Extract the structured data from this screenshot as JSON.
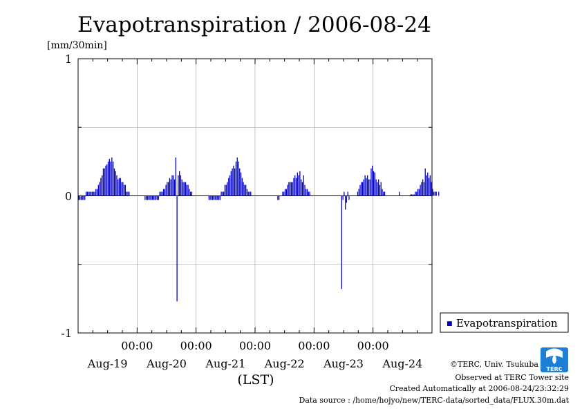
{
  "chart_data": {
    "type": "bar",
    "title": "Evapotranspiration / 2006-08-24",
    "ylabel": "[mm/30min]",
    "xlabel": "(LST)",
    "ylim": [
      -1,
      1
    ],
    "yticks": [
      {
        "value": 1,
        "label": "1"
      },
      {
        "value": 0,
        "label": "0"
      },
      {
        "value": -1,
        "label": "-1"
      }
    ],
    "yminor": [
      0.5,
      -0.5
    ],
    "xlim_days": [
      0,
      6
    ],
    "xticks": [
      {
        "day": 1,
        "label": "00:00"
      },
      {
        "day": 2,
        "label": "00:00"
      },
      {
        "day": 3,
        "label": "00:00"
      },
      {
        "day": 4,
        "label": "00:00"
      },
      {
        "day": 5,
        "label": "00:00"
      }
    ],
    "day_labels": [
      {
        "day": 0.5,
        "label": "Aug-19"
      },
      {
        "day": 1.5,
        "label": "Aug-20"
      },
      {
        "day": 2.5,
        "label": "Aug-21"
      },
      {
        "day": 3.5,
        "label": "Aug-22"
      },
      {
        "day": 4.5,
        "label": "Aug-23"
      },
      {
        "day": 5.5,
        "label": "Aug-24"
      }
    ],
    "grid": true,
    "legend_position": "right",
    "series": [
      {
        "name": "Evapotranspiration",
        "color": "#0000cc",
        "interval_hours": 0.5,
        "start": "Aug-19 00:00",
        "values": [
          -0.03,
          -0.03,
          -0.03,
          -0.03,
          -0.03,
          -0.03,
          0.03,
          0.03,
          0.03,
          0.03,
          0.03,
          0.03,
          0.03,
          0.03,
          0.05,
          0.05,
          0.08,
          0.1,
          0.13,
          0.15,
          0.2,
          0.2,
          0.22,
          0.23,
          0.25,
          0.27,
          0.25,
          0.28,
          0.25,
          0.2,
          0.18,
          0.15,
          0.12,
          0.13,
          0.13,
          0.1,
          0.1,
          0.08,
          0.08,
          0.03,
          0.03,
          0.03,
          0,
          0,
          0,
          0,
          0,
          0,
          0,
          0,
          0,
          0,
          0,
          0,
          -0.03,
          -0.03,
          -0.03,
          -0.03,
          -0.03,
          -0.03,
          -0.03,
          -0.03,
          -0.03,
          -0.03,
          -0.03,
          -0.03,
          0.03,
          0.03,
          0.03,
          0.05,
          0.05,
          0.08,
          0.1,
          0.1,
          0.13,
          0.12,
          0.15,
          0.15,
          0.12,
          0.28,
          -0.77,
          0.15,
          0.18,
          0.15,
          0.12,
          0.1,
          0.1,
          0.1,
          0.08,
          0.08,
          0.05,
          0.03,
          0.03,
          0,
          0,
          0,
          0,
          0,
          0,
          0,
          0,
          0,
          0,
          0,
          0,
          0,
          -0.03,
          -0.03,
          -0.03,
          -0.03,
          -0.03,
          -0.03,
          -0.03,
          -0.03,
          -0.03,
          -0.03,
          0.03,
          0.03,
          0.03,
          0.08,
          0.08,
          0.1,
          0.13,
          0.15,
          0.18,
          0.2,
          0.22,
          0.2,
          0.25,
          0.28,
          0.25,
          0.2,
          0.17,
          0.13,
          0.1,
          0.08,
          0.08,
          0.05,
          0.03,
          0.03,
          0.03,
          0,
          0,
          0,
          0,
          0,
          0,
          0,
          0,
          0,
          0,
          0,
          0,
          0,
          0,
          0,
          0,
          0,
          0,
          0,
          0,
          0,
          -0.03,
          -0.03,
          0,
          0,
          0.03,
          0.03,
          0.05,
          0.05,
          0.08,
          0.1,
          0.1,
          0.1,
          0.1,
          0.13,
          0.15,
          0.13,
          0.17,
          0.15,
          0.18,
          0.12,
          0.1,
          0.15,
          0.08,
          0.05,
          0.05,
          0.03,
          0.03,
          0,
          0,
          0,
          0,
          0,
          0,
          0,
          0,
          0,
          0,
          0,
          0,
          0,
          0,
          0,
          0,
          0,
          0,
          0,
          0,
          0,
          0,
          0,
          0,
          0,
          -0.68,
          -0.03,
          0.03,
          -0.1,
          -0.05,
          0.03,
          -0.03,
          0,
          0,
          0,
          0,
          0,
          0,
          0.03,
          0.05,
          0.08,
          0.1,
          0.1,
          0.12,
          0.15,
          0.13,
          0.15,
          0.12,
          0.12,
          0.2,
          0.22,
          0.18,
          0.17,
          0.12,
          0.1,
          0.12,
          0.08,
          0.1,
          0.05,
          0.03,
          0.03,
          0,
          0,
          0,
          0,
          0,
          0,
          0,
          0,
          0,
          0,
          0,
          0.03,
          0,
          0,
          0,
          0,
          0,
          0,
          0,
          0,
          0.01,
          0.01,
          0.01,
          0.01,
          0.03,
          0.03,
          0.05,
          0.05,
          0.08,
          0.1,
          0.12,
          0.1,
          0.2,
          0.15,
          0.17,
          0.13,
          0.15,
          0.1,
          0.05,
          0.03,
          0.03,
          0.03,
          0,
          0.03,
          0
        ]
      }
    ]
  },
  "legend": {
    "label": "Evapotranspiration",
    "marker": "■"
  },
  "logo": {
    "text": "TERC"
  },
  "credits": {
    "line1": "©TERC, Univ. Tsukuba",
    "line2": "Observed at TERC Tower site",
    "line3": "Created Automatically at 2006-08-24/23:32:29",
    "line4": "Data source : /home/hojyo/new/TERC-data/sorted_data/FLUX.30m.dat"
  }
}
